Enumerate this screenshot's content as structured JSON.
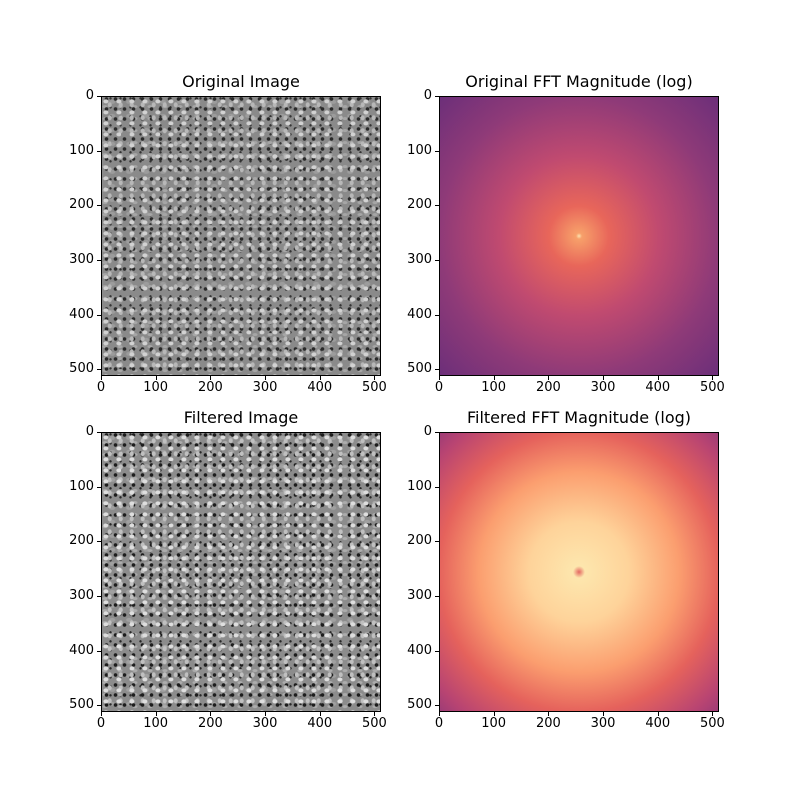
{
  "chart_data": [
    {
      "type": "heatmap",
      "title": "Original Image",
      "colormap": "gray",
      "xlabel": "",
      "ylabel": "",
      "xlim": [
        0,
        512
      ],
      "ylim": [
        512,
        0
      ],
      "xticks": [
        "0",
        "100",
        "200",
        "300",
        "400",
        "500"
      ],
      "yticks": [
        "0",
        "100",
        "200",
        "300",
        "400",
        "500"
      ]
    },
    {
      "type": "heatmap",
      "title": "Original FFT Magnitude (log)",
      "colormap": "magma",
      "xlim": [
        0,
        512
      ],
      "ylim": [
        512,
        0
      ],
      "xticks": [
        "0",
        "100",
        "200",
        "300",
        "400",
        "500"
      ],
      "yticks": [
        "0",
        "100",
        "200",
        "300",
        "400",
        "500"
      ]
    },
    {
      "type": "heatmap",
      "title": "Filtered Image",
      "colormap": "gray",
      "xlim": [
        0,
        512
      ],
      "ylim": [
        512,
        0
      ],
      "xticks": [
        "0",
        "100",
        "200",
        "300",
        "400",
        "500"
      ],
      "yticks": [
        "0",
        "100",
        "200",
        "300",
        "400",
        "500"
      ]
    },
    {
      "type": "heatmap",
      "title": "Filtered FFT Magnitude (log)",
      "colormap": "magma",
      "xlim": [
        0,
        512
      ],
      "ylim": [
        512,
        0
      ],
      "xticks": [
        "0",
        "100",
        "200",
        "300",
        "400",
        "500"
      ],
      "yticks": [
        "0",
        "100",
        "200",
        "300",
        "400",
        "500"
      ]
    }
  ],
  "ticks": [
    "0",
    "100",
    "200",
    "300",
    "400",
    "500"
  ]
}
